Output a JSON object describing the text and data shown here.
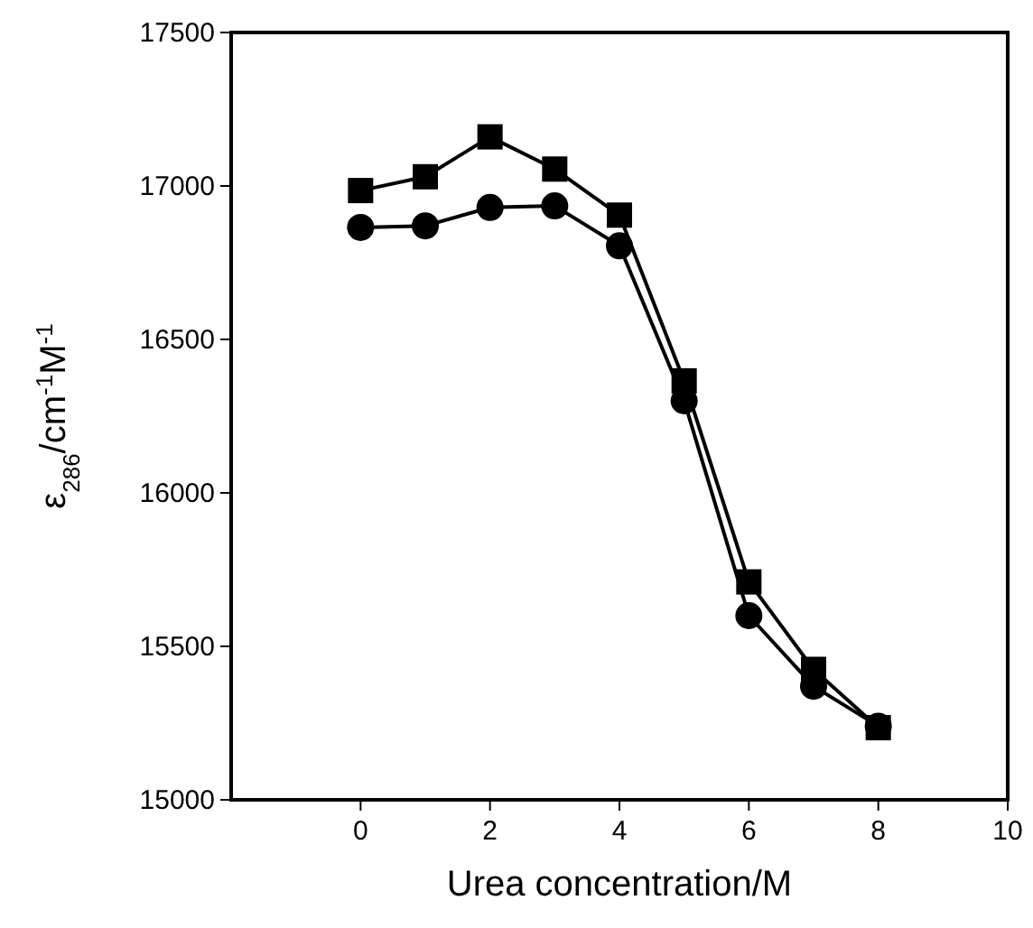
{
  "chart_data": {
    "type": "line",
    "xlabel": "Urea concentration/M",
    "ylabel": "ε$_{286}$/cm$^{-1}$M$^{-1}$",
    "x": [
      0,
      1,
      2,
      3,
      4,
      5,
      6,
      7,
      8
    ],
    "series": [
      {
        "color": "#000000",
        "marker": "square",
        "values": [
          16985,
          17030,
          17160,
          17055,
          16905,
          16365,
          15710,
          15425,
          15235
        ]
      },
      {
        "color": "#000000",
        "marker": "circle",
        "values": [
          16865,
          16870,
          16930,
          16935,
          16805,
          16300,
          15600,
          15370,
          15240
        ]
      }
    ],
    "xlim": [
      -2,
      10
    ],
    "xticks": [
      0,
      2,
      4,
      6,
      8,
      10
    ],
    "ylim": [
      15000,
      17500
    ],
    "yticks": [
      15000,
      15500,
      16000,
      16500,
      17000,
      17500
    ],
    "grid": false,
    "line_style": "solid"
  }
}
